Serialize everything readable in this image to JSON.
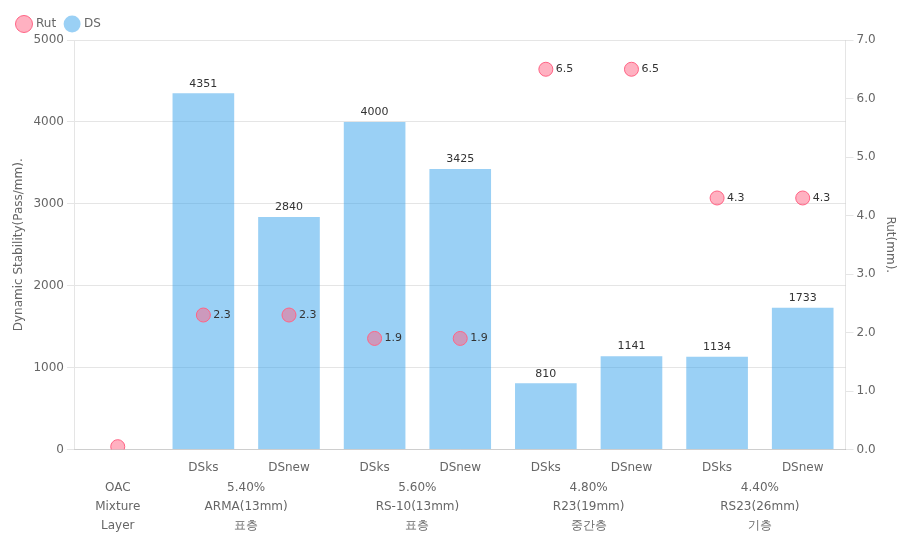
{
  "chart_data": {
    "type": "bar",
    "categories": [
      null,
      "DSks",
      "DSnew",
      "DSks",
      "DSnew",
      "DSks",
      "DSnew",
      "DSks",
      "DSnew"
    ],
    "group_label_rows": [
      {
        "header": "OAC",
        "labels": [
          "5.40%",
          "5.60%",
          "4.80%",
          "4.40%"
        ]
      },
      {
        "header": "Mixture",
        "labels": [
          "ARMA(13mm)",
          "RS-10(13mm)",
          "R23(19mm)",
          "RS23(26mm)"
        ]
      },
      {
        "header": "Layer",
        "labels": [
          "표층",
          "표층",
          "중간층",
          "기층"
        ]
      }
    ],
    "series": [
      {
        "name": "DS",
        "type": "bar",
        "values": [
          null,
          4351,
          2840,
          4000,
          3425,
          810,
          1141,
          1134,
          1733
        ]
      },
      {
        "name": "Rut",
        "type": "scatter",
        "marker": "circle",
        "axis": "y2",
        "values": [
          0.05,
          2.3,
          2.3,
          1.9,
          1.9,
          6.5,
          6.5,
          4.3,
          4.3
        ],
        "value_labels": [
          null,
          "2.3",
          "2.3",
          "1.9",
          "1.9",
          "6.5",
          "6.5",
          "4.3",
          "4.3"
        ]
      }
    ],
    "ylabel": "Dynamic Stability(Pass/mm).",
    "y2label": "Rut(mm).",
    "ylim": [
      0,
      5000
    ],
    "yticks": [
      0,
      1000,
      2000,
      3000,
      4000,
      5000
    ],
    "y2lim": [
      0,
      7.0
    ],
    "y2ticks": [
      {
        "value": 0,
        "label": "0.0"
      },
      {
        "value": 1,
        "label": "1.0"
      },
      {
        "value": 2,
        "label": "2.0"
      },
      {
        "value": 3,
        "label": "3.0"
      },
      {
        "value": 4,
        "label": "4.0"
      },
      {
        "value": 5,
        "label": "5.0"
      },
      {
        "value": 6,
        "label": "6.0"
      },
      {
        "value": 7,
        "label": "7.0"
      }
    ],
    "grid": true,
    "legend": "upper left",
    "data_labels": true
  }
}
